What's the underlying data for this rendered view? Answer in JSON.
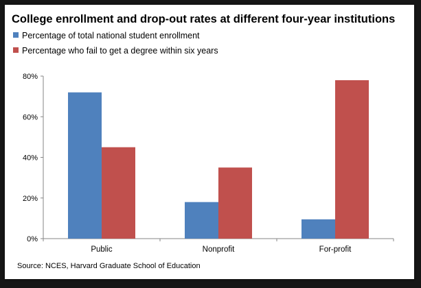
{
  "chart_data": {
    "type": "bar",
    "title": "College enrollment and drop-out rates at different four-year institutions",
    "categories": [
      "Public",
      "Nonprofit",
      "For-profit"
    ],
    "series": [
      {
        "name": "Percentage of total national student enrollment",
        "color": "#4f81bd",
        "values": [
          72,
          18,
          9.5
        ]
      },
      {
        "name": "Percentage who fail to get a degree within six years",
        "color": "#c0504d",
        "values": [
          45,
          35,
          78
        ]
      }
    ],
    "ylim": [
      0,
      80
    ],
    "yticks": [
      0,
      20,
      40,
      60,
      80
    ],
    "ytick_labels": [
      "0%",
      "20%",
      "40%",
      "60%",
      "80%"
    ],
    "xlabel": "",
    "ylabel": "",
    "grid": false,
    "legend_position": "top-left",
    "source": "Source:  NCES, Harvard Graduate School of Education"
  }
}
